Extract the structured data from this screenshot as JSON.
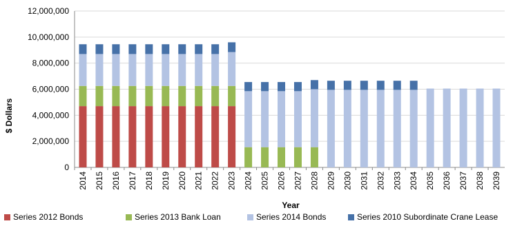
{
  "chart_data": {
    "type": "bar",
    "stacked": true,
    "title": "",
    "xlabel": "Year",
    "ylabel": "$ Dollars",
    "ylim": [
      0,
      12000000
    ],
    "yticks": [
      "0",
      "2,000,000",
      "4,000,000",
      "6,000,000",
      "8,000,000",
      "10,000,000",
      "12,000,000"
    ],
    "grid": true,
    "legend_position": "bottom",
    "categories": [
      "2014",
      "2015",
      "2016",
      "2017",
      "2018",
      "2019",
      "2020",
      "2021",
      "2022",
      "2023",
      "2024",
      "2025",
      "2026",
      "2027",
      "2028",
      "2029",
      "2030",
      "2031",
      "2032",
      "2033",
      "2034",
      "2035",
      "2036",
      "2037",
      "2038",
      "2039"
    ],
    "series": [
      {
        "name": "Series 2012 Bonds",
        "color": "#BE4B48",
        "values": [
          4700000,
          4700000,
          4700000,
          4700000,
          4700000,
          4700000,
          4700000,
          4700000,
          4700000,
          4700000,
          0,
          0,
          0,
          0,
          0,
          0,
          0,
          0,
          0,
          0,
          0,
          0,
          0,
          0,
          0,
          0
        ]
      },
      {
        "name": "Series 2013 Bank Loan",
        "color": "#98B954",
        "values": [
          1550000,
          1550000,
          1550000,
          1550000,
          1550000,
          1550000,
          1550000,
          1550000,
          1550000,
          1550000,
          1550000,
          1550000,
          1550000,
          1550000,
          1550000,
          0,
          0,
          0,
          0,
          0,
          0,
          0,
          0,
          0,
          0,
          0
        ]
      },
      {
        "name": "Series 2014 Bonds",
        "color": "#B3C3E3",
        "values": [
          2450000,
          2450000,
          2450000,
          2450000,
          2450000,
          2450000,
          2450000,
          2450000,
          2450000,
          2600000,
          4300000,
          4300000,
          4300000,
          4300000,
          4450000,
          5950000,
          5950000,
          5950000,
          5950000,
          5950000,
          5950000,
          6050000,
          6050000,
          6050000,
          6050000,
          6050000
        ]
      },
      {
        "name": "Series 2010 Subordinate Crane Lease",
        "color": "#4671A8",
        "values": [
          750000,
          750000,
          750000,
          750000,
          750000,
          750000,
          750000,
          750000,
          750000,
          750000,
          700000,
          700000,
          700000,
          700000,
          700000,
          700000,
          700000,
          700000,
          700000,
          700000,
          700000,
          0,
          0,
          0,
          0,
          0
        ]
      }
    ]
  }
}
